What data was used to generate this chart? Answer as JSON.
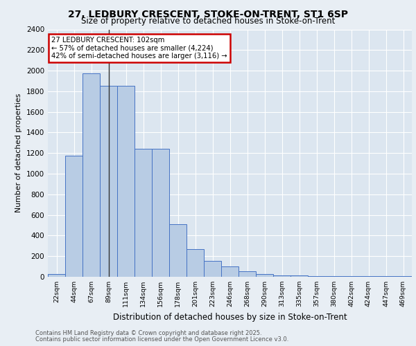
{
  "title_line1": "27, LEDBURY CRESCENT, STOKE-ON-TRENT, ST1 6SP",
  "title_line2": "Size of property relative to detached houses in Stoke-on-Trent",
  "xlabel": "Distribution of detached houses by size in Stoke-on-Trent",
  "ylabel": "Number of detached properties",
  "categories": [
    "22sqm",
    "44sqm",
    "67sqm",
    "89sqm",
    "111sqm",
    "134sqm",
    "156sqm",
    "178sqm",
    "201sqm",
    "223sqm",
    "246sqm",
    "268sqm",
    "290sqm",
    "313sqm",
    "335sqm",
    "357sqm",
    "380sqm",
    "402sqm",
    "424sqm",
    "447sqm",
    "469sqm"
  ],
  "values": [
    25,
    1175,
    1975,
    1855,
    1855,
    1240,
    1240,
    510,
    270,
    155,
    100,
    55,
    30,
    15,
    15,
    5,
    5,
    5,
    5,
    5,
    5
  ],
  "bar_color": "#b8cce4",
  "bar_edge_color": "#4472c4",
  "property_bin_index": 3,
  "annotation_text": "27 LEDBURY CRESCENT: 102sqm\n← 57% of detached houses are smaller (4,224)\n42% of semi-detached houses are larger (3,116) →",
  "annotation_box_color": "#ffffff",
  "annotation_box_edge_color": "#cc0000",
  "ylim": [
    0,
    2400
  ],
  "yticks": [
    0,
    200,
    400,
    600,
    800,
    1000,
    1200,
    1400,
    1600,
    1800,
    2000,
    2200,
    2400
  ],
  "bg_color": "#e8eef4",
  "plot_bg_color": "#dce6f0",
  "grid_color": "#ffffff",
  "footer_line1": "Contains HM Land Registry data © Crown copyright and database right 2025.",
  "footer_line2": "Contains public sector information licensed under the Open Government Licence v3.0."
}
